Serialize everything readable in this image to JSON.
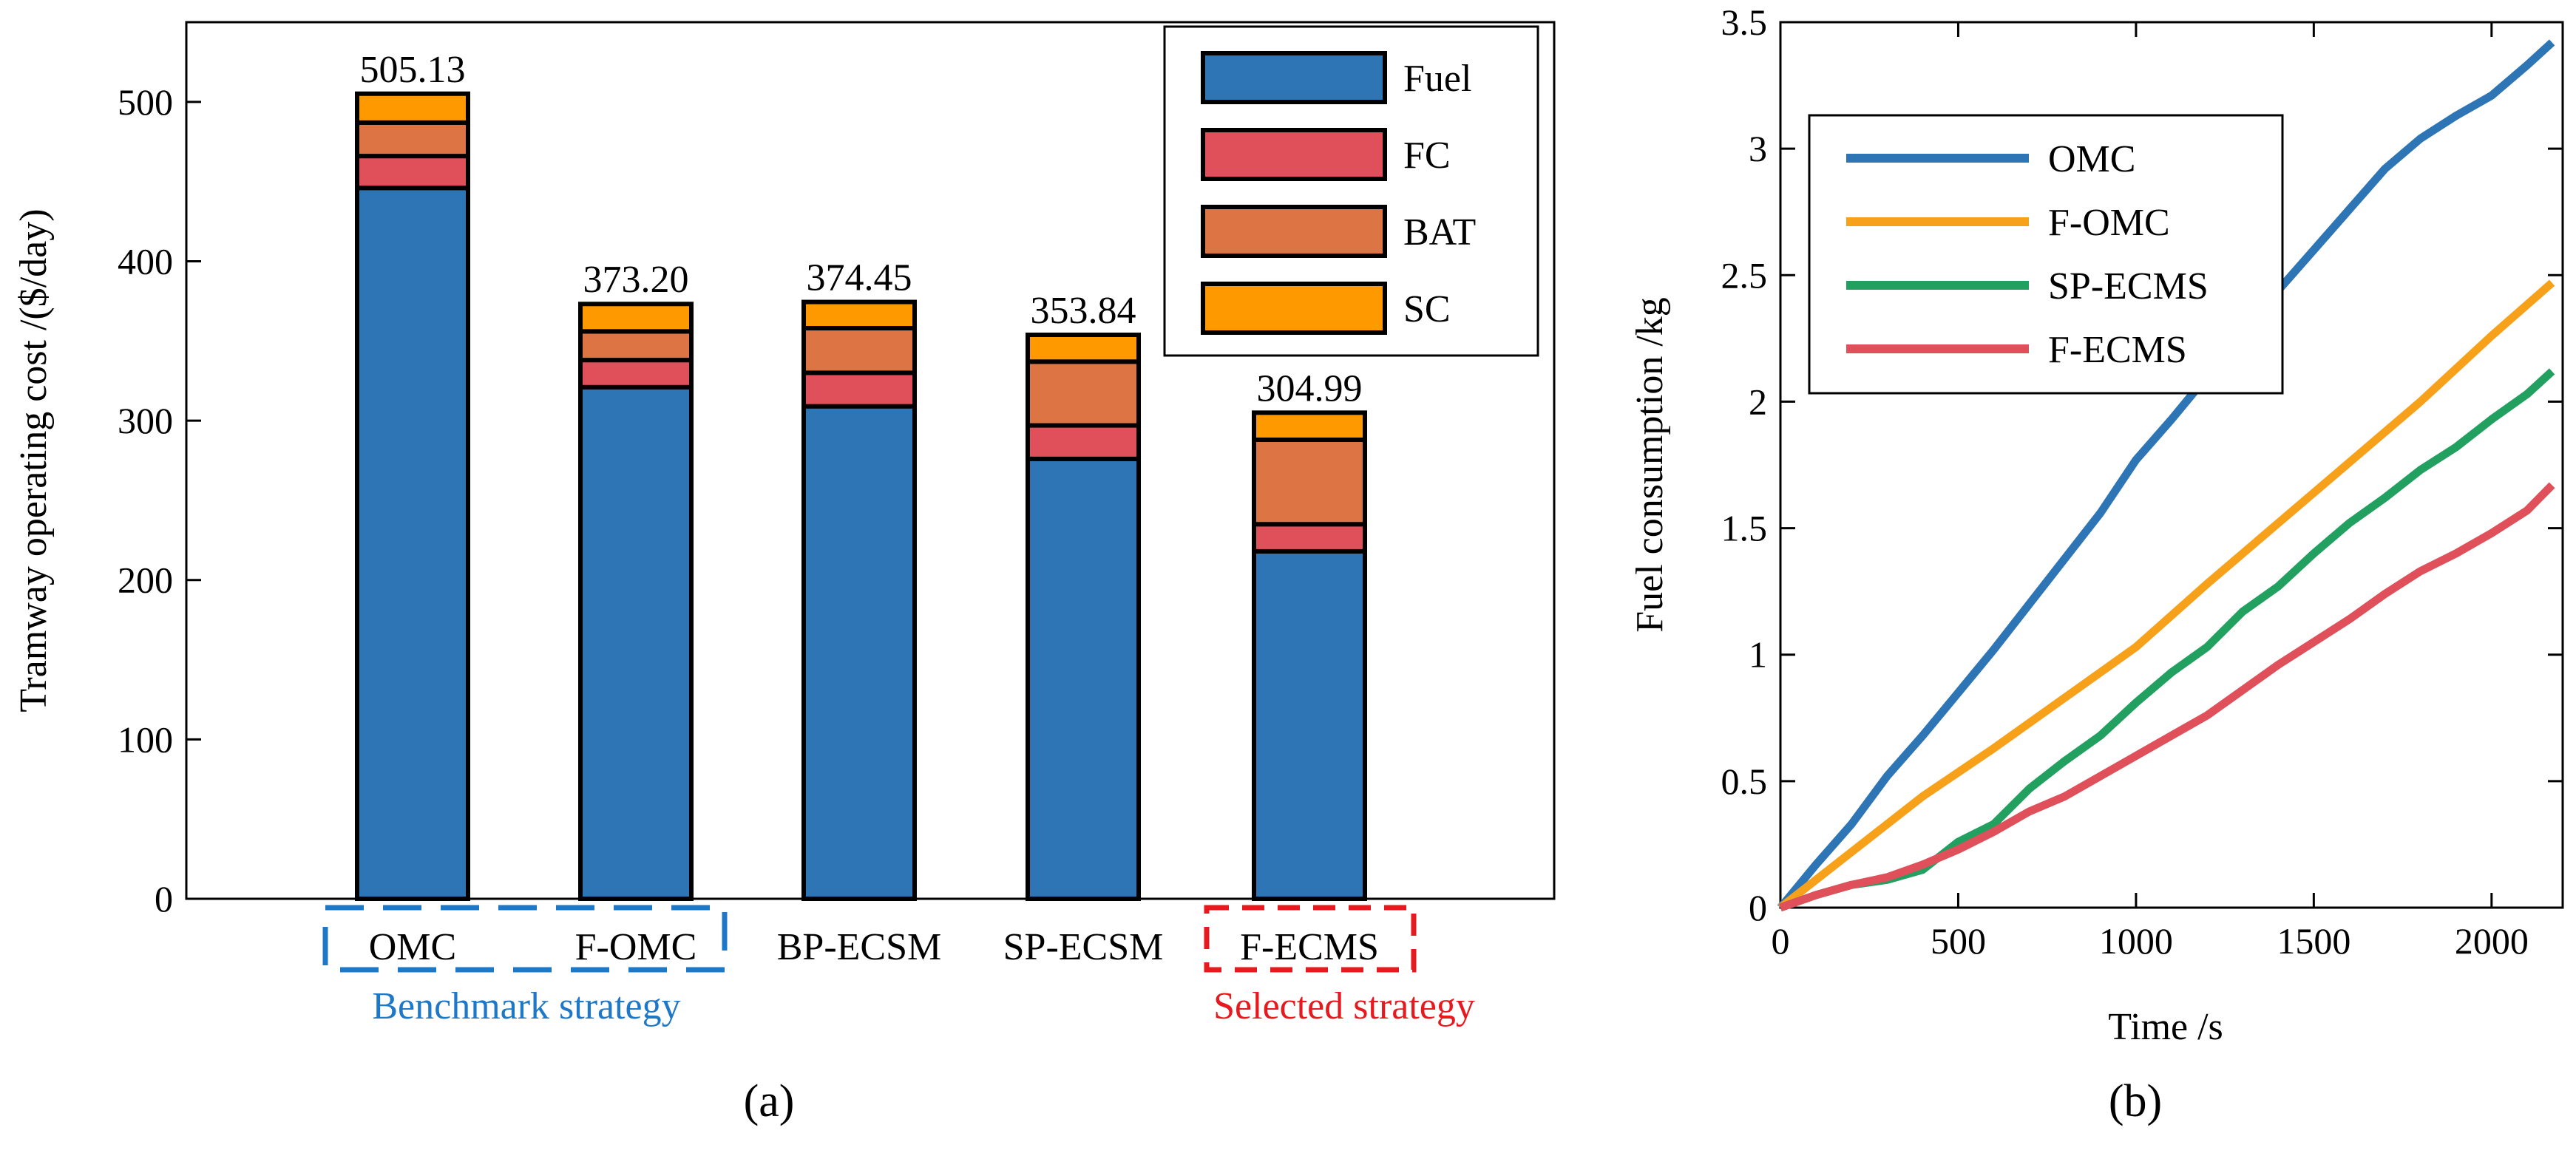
{
  "chart_data": [
    {
      "type": "bar",
      "stacked": true,
      "ylabel": "Tramway operating cost /($/day)",
      "ylim": [
        0,
        550
      ],
      "yticks": [
        0,
        100,
        200,
        300,
        400,
        500
      ],
      "categories": [
        "OMC",
        "F-OMC",
        "BP-ECSM",
        "SP-ECSM",
        "F-ECMS"
      ],
      "series": [
        {
          "name": "Fuel",
          "color": "#2E75B6",
          "values": [
            446,
            321,
            309,
            276,
            218
          ]
        },
        {
          "name": "FC",
          "color": "#E0505A",
          "values": [
            20,
            17,
            21,
            21,
            17
          ]
        },
        {
          "name": "BAT",
          "color": "#DC7444",
          "values": [
            21,
            18,
            28,
            40,
            53
          ]
        },
        {
          "name": "SC",
          "color": "#FF9900",
          "values": [
            18.13,
            17.2,
            16.45,
            16.84,
            16.99
          ]
        }
      ],
      "totals": [
        "505.13",
        "373.20",
        "374.45",
        "353.84",
        "304.99"
      ],
      "legend_position": "top-right",
      "groups": [
        {
          "label": "Benchmark strategy",
          "color": "#1E78C8",
          "members": [
            "OMC",
            "F-OMC"
          ]
        },
        {
          "label": "Selected strategy",
          "color": "#E8191E",
          "members": [
            "F-ECMS"
          ]
        }
      ],
      "panel_label": "(a)"
    },
    {
      "type": "line",
      "xlabel": "Time /s",
      "ylabel": "Fuel consumption /kg",
      "xlim": [
        0,
        2200
      ],
      "ylim": [
        0,
        3.5
      ],
      "xticks": [
        0,
        500,
        1000,
        1500,
        2000
      ],
      "yticks": [
        "0",
        "0.5",
        "1",
        "1.5",
        "2",
        "2.5",
        "3",
        "3.5"
      ],
      "legend_position": "top-left",
      "series": [
        {
          "name": "OMC",
          "color": "#2E75B6",
          "points": [
            [
              0,
              0
            ],
            [
              100,
              0.17
            ],
            [
              200,
              0.33
            ],
            [
              300,
              0.52
            ],
            [
              400,
              0.68
            ],
            [
              500,
              0.85
            ],
            [
              600,
              1.02
            ],
            [
              700,
              1.2
            ],
            [
              800,
              1.38
            ],
            [
              900,
              1.56
            ],
            [
              1000,
              1.77
            ],
            [
              1100,
              1.93
            ],
            [
              1200,
              2.1
            ],
            [
              1300,
              2.27
            ],
            [
              1400,
              2.44
            ],
            [
              1500,
              2.6
            ],
            [
              1600,
              2.76
            ],
            [
              1700,
              2.92
            ],
            [
              1800,
              3.04
            ],
            [
              1900,
              3.13
            ],
            [
              2000,
              3.21
            ],
            [
              2100,
              3.33
            ],
            [
              2170,
              3.42
            ]
          ]
        },
        {
          "name": "F-OMC",
          "color": "#F7A11A",
          "points": [
            [
              0,
              0
            ],
            [
              200,
              0.22
            ],
            [
              400,
              0.44
            ],
            [
              600,
              0.63
            ],
            [
              800,
              0.83
            ],
            [
              1000,
              1.03
            ],
            [
              1200,
              1.28
            ],
            [
              1400,
              1.52
            ],
            [
              1600,
              1.76
            ],
            [
              1800,
              2.0
            ],
            [
              2000,
              2.26
            ],
            [
              2170,
              2.47
            ]
          ]
        },
        {
          "name": "SP-ECMS",
          "color": "#22A060",
          "points": [
            [
              0,
              0
            ],
            [
              100,
              0.05
            ],
            [
              200,
              0.09
            ],
            [
              300,
              0.11
            ],
            [
              400,
              0.15
            ],
            [
              500,
              0.26
            ],
            [
              600,
              0.33
            ],
            [
              700,
              0.47
            ],
            [
              800,
              0.58
            ],
            [
              900,
              0.68
            ],
            [
              1000,
              0.81
            ],
            [
              1100,
              0.93
            ],
            [
              1200,
              1.03
            ],
            [
              1300,
              1.17
            ],
            [
              1400,
              1.27
            ],
            [
              1500,
              1.4
            ],
            [
              1600,
              1.52
            ],
            [
              1700,
              1.62
            ],
            [
              1800,
              1.73
            ],
            [
              1900,
              1.82
            ],
            [
              2000,
              1.93
            ],
            [
              2100,
              2.03
            ],
            [
              2170,
              2.12
            ]
          ]
        },
        {
          "name": "F-ECMS",
          "color": "#E0505A",
          "points": [
            [
              0,
              0
            ],
            [
              100,
              0.05
            ],
            [
              200,
              0.09
            ],
            [
              300,
              0.12
            ],
            [
              400,
              0.17
            ],
            [
              500,
              0.23
            ],
            [
              600,
              0.3
            ],
            [
              700,
              0.38
            ],
            [
              800,
              0.44
            ],
            [
              900,
              0.52
            ],
            [
              1000,
              0.6
            ],
            [
              1100,
              0.68
            ],
            [
              1200,
              0.76
            ],
            [
              1300,
              0.86
            ],
            [
              1400,
              0.96
            ],
            [
              1500,
              1.05
            ],
            [
              1600,
              1.14
            ],
            [
              1700,
              1.24
            ],
            [
              1800,
              1.33
            ],
            [
              1900,
              1.4
            ],
            [
              2000,
              1.48
            ],
            [
              2100,
              1.57
            ],
            [
              2170,
              1.67
            ]
          ]
        }
      ],
      "panel_label": "(b)"
    }
  ]
}
